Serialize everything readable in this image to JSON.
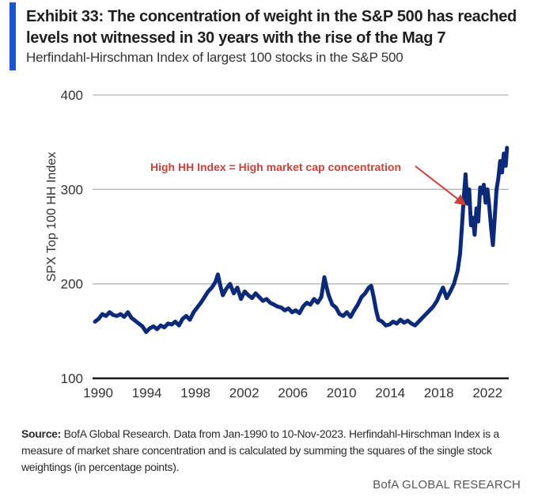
{
  "exhibit": {
    "title": "Exhibit 33: The concentration of weight in the S&P 500 has reached levels not witnessed in 30 years with the rise of the Mag 7",
    "subtitle": "Herfindahl-Hirschman  Index of largest 100 stocks in the S&P 500",
    "accent_color": "#1a56c9"
  },
  "footer": {
    "source_label": "Source:",
    "source_text": " BofA Global Research. Data from Jan-1990 to 10-Nov-2023. Herfindahl-Hirschman Index is a measure of market share concentration and is calculated by summing the squares of the single stock weightings (in percentage points).",
    "brand": "BofA GLOBAL RESEARCH"
  },
  "chart_data": {
    "type": "line",
    "title": "Herfindahl-Hirschman Index of largest 100 stocks in the S&P 500",
    "xlabel": "",
    "ylabel": "SPX Top 100 HH Index",
    "xlim": [
      1990,
      2024
    ],
    "ylim": [
      100,
      400
    ],
    "yticks": [
      100,
      200,
      300,
      400
    ],
    "ytick_labels": [
      "100",
      "200",
      "300",
      "400"
    ],
    "xticks": [
      1990,
      1994,
      1998,
      2002,
      2006,
      2010,
      2014,
      2018,
      2022
    ],
    "xtick_labels": [
      "1990",
      "1994",
      "1998",
      "2002",
      "2006",
      "2010",
      "2014",
      "2018",
      "2022"
    ],
    "grid": "horizontal",
    "line_color": "#0d2a78",
    "annotation": {
      "text": "High HH Index = High market cap concentration",
      "color": "#c8413a",
      "arrow_target": [
        2020.5,
        283
      ]
    },
    "series": [
      {
        "name": "SPX Top 100 HH Index",
        "x": [
          1990.0,
          1990.3,
          1990.6,
          1990.9,
          1991.2,
          1991.5,
          1991.8,
          1992.1,
          1992.4,
          1992.7,
          1993.0,
          1993.3,
          1993.6,
          1993.9,
          1994.2,
          1994.5,
          1994.8,
          1995.1,
          1995.4,
          1995.7,
          1996.0,
          1996.3,
          1996.6,
          1996.9,
          1997.2,
          1997.5,
          1997.8,
          1998.1,
          1998.4,
          1998.7,
          1999.0,
          1999.3,
          1999.6,
          1999.9,
          2000.1,
          2000.3,
          2000.5,
          2000.8,
          2001.1,
          2001.4,
          2001.7,
          2002.0,
          2002.3,
          2002.6,
          2002.9,
          2003.2,
          2003.5,
          2003.8,
          2004.1,
          2004.4,
          2004.7,
          2005.0,
          2005.3,
          2005.6,
          2005.9,
          2006.2,
          2006.5,
          2006.8,
          2007.1,
          2007.4,
          2007.7,
          2008.0,
          2008.3,
          2008.6,
          2008.85,
          2009.0,
          2009.2,
          2009.5,
          2009.8,
          2010.1,
          2010.4,
          2010.7,
          2011.0,
          2011.3,
          2011.6,
          2011.9,
          2012.2,
          2012.5,
          2012.7,
          2012.9,
          2013.1,
          2013.3,
          2013.6,
          2013.9,
          2014.2,
          2014.5,
          2014.8,
          2015.1,
          2015.4,
          2015.7,
          2016.0,
          2016.3,
          2016.6,
          2016.9,
          2017.2,
          2017.5,
          2017.8,
          2018.1,
          2018.3,
          2018.6,
          2018.9,
          2019.2,
          2019.5,
          2019.8,
          2020.0,
          2020.15,
          2020.3,
          2020.45,
          2020.6,
          2020.75,
          2020.9,
          2021.05,
          2021.2,
          2021.35,
          2021.5,
          2021.65,
          2021.8,
          2021.95,
          2022.1,
          2022.25,
          2022.4,
          2022.55,
          2022.7,
          2022.85,
          2023.0,
          2023.15,
          2023.3,
          2023.45,
          2023.6,
          2023.75,
          2023.86
        ],
        "values": [
          160,
          163,
          168,
          166,
          170,
          167,
          166,
          168,
          165,
          170,
          164,
          161,
          158,
          155,
          149,
          153,
          155,
          152,
          156,
          154,
          158,
          157,
          160,
          156,
          163,
          166,
          162,
          170,
          175,
          180,
          186,
          192,
          196,
          202,
          210,
          198,
          188,
          195,
          200,
          190,
          196,
          184,
          192,
          188,
          185,
          190,
          186,
          182,
          184,
          180,
          178,
          176,
          175,
          172,
          174,
          170,
          172,
          169,
          176,
          180,
          178,
          184,
          180,
          186,
          207,
          198,
          188,
          178,
          175,
          168,
          166,
          170,
          165,
          172,
          178,
          186,
          190,
          196,
          198,
          186,
          172,
          162,
          160,
          156,
          157,
          160,
          158,
          162,
          159,
          161,
          158,
          156,
          160,
          164,
          168,
          172,
          176,
          182,
          188,
          196,
          185,
          192,
          200,
          214,
          232,
          260,
          290,
          316,
          285,
          300,
          262,
          270,
          252,
          280,
          266,
          302,
          296,
          305,
          286,
          300,
          282,
          260,
          241,
          270,
          300,
          312,
          330,
          318,
          338,
          325,
          344
        ]
      }
    ]
  }
}
